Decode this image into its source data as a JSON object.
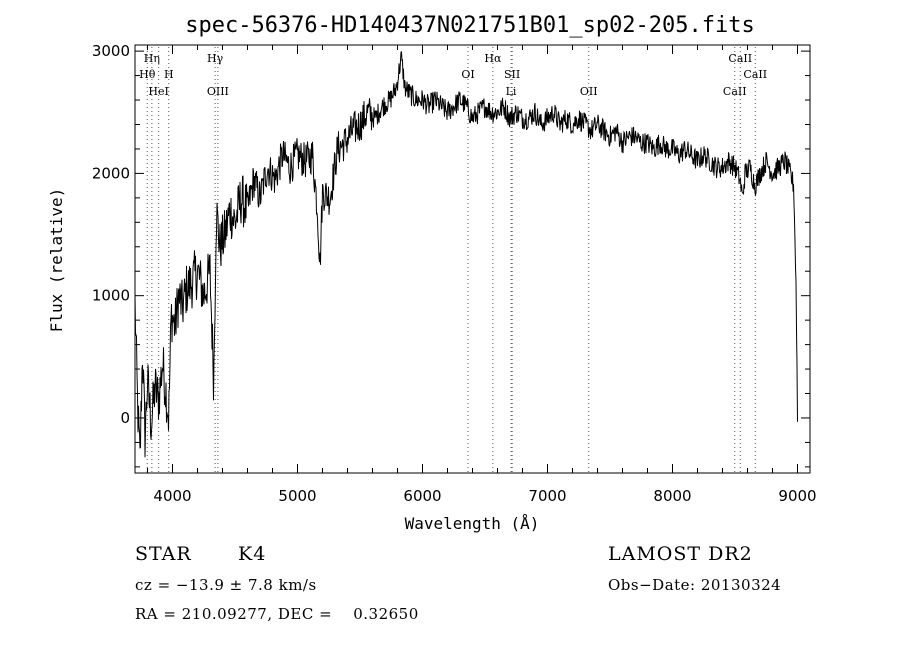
{
  "chart_data": {
    "type": "line",
    "title": "spec-56376-HD140437N021751B01_sp02-205.fits",
    "xlabel": "Wavelength (Å)",
    "ylabel": "Flux (relative)",
    "xlim": [
      3700,
      9100
    ],
    "ylim": [
      -450,
      3050
    ],
    "x_ticks": [
      4000,
      5000,
      6000,
      7000,
      8000,
      9000
    ],
    "y_ticks": [
      0,
      1000,
      2000,
      3000
    ],
    "grid": false,
    "series": [
      {
        "x": [
          3700,
          3720,
          3740,
          3760,
          3780,
          3800,
          3830,
          3860,
          3890,
          3920,
          3950,
          3970,
          3990,
          4020,
          4050,
          4080,
          4110,
          4150,
          4200,
          4250,
          4300,
          4330,
          4350,
          4380,
          4420,
          4460,
          4500,
          4550,
          4600,
          4650,
          4700,
          4760,
          4820,
          4880,
          4940,
          5000,
          5060,
          5120,
          5160,
          5180,
          5200,
          5260,
          5320,
          5380,
          5440,
          5500,
          5560,
          5620,
          5680,
          5740,
          5790,
          5830,
          5860,
          5900,
          5950,
          6000,
          6050,
          6100,
          6150,
          6200,
          6250,
          6300,
          6350,
          6400,
          6450,
          6500,
          6550,
          6600,
          6650,
          6700,
          6750,
          6800,
          6850,
          6900,
          6950,
          7000,
          7050,
          7100,
          7150,
          7200,
          7250,
          7300,
          7350,
          7400,
          7450,
          7500,
          7550,
          7600,
          7650,
          7700,
          7750,
          7800,
          7850,
          7900,
          7950,
          8000,
          8050,
          8100,
          8150,
          8200,
          8250,
          8300,
          8350,
          8400,
          8450,
          8500,
          8540,
          8560,
          8580,
          8620,
          8660,
          8700,
          8750,
          8800,
          8850,
          8900,
          8940,
          8970,
          8990,
          9000
        ],
        "y": [
          950,
          120,
          -350,
          550,
          -150,
          300,
          -50,
          250,
          150,
          450,
          200,
          0,
          850,
          750,
          1000,
          900,
          1050,
          1100,
          1200,
          1000,
          1200,
          300,
          1700,
          1400,
          1500,
          1700,
          1600,
          1800,
          1700,
          1950,
          1800,
          2050,
          1950,
          2150,
          2050,
          2150,
          2100,
          2150,
          1700,
          1250,
          1850,
          1800,
          2200,
          2250,
          2350,
          2400,
          2500,
          2450,
          2550,
          2600,
          2700,
          2950,
          2700,
          2650,
          2600,
          2600,
          2550,
          2600,
          2550,
          2500,
          2550,
          2600,
          2550,
          2450,
          2500,
          2550,
          2500,
          2500,
          2550,
          2450,
          2500,
          2450,
          2450,
          2500,
          2400,
          2450,
          2500,
          2400,
          2450,
          2400,
          2450,
          2400,
          2350,
          2400,
          2350,
          2300,
          2350,
          2250,
          2300,
          2300,
          2250,
          2250,
          2200,
          2250,
          2200,
          2200,
          2150,
          2200,
          2150,
          2100,
          2150,
          2100,
          2050,
          2050,
          2100,
          2050,
          1950,
          1800,
          2000,
          2050,
          1900,
          2000,
          2100,
          2000,
          2050,
          2100,
          2000,
          1900,
          1000,
          0
        ]
      }
    ],
    "line_markers": [
      {
        "label": "Hη",
        "wavelength": 3835,
        "row": 0
      },
      {
        "label": "Hθ",
        "wavelength": 3798,
        "row": 1
      },
      {
        "label": "H",
        "wavelength": 3970,
        "row": 1
      },
      {
        "label": "HeI",
        "wavelength": 3889,
        "row": 2
      },
      {
        "label": "Hγ",
        "wavelength": 4341,
        "row": 0
      },
      {
        "label": "OIII",
        "wavelength": 4363,
        "row": 2
      },
      {
        "label": "Hα",
        "wavelength": 6563,
        "row": 0
      },
      {
        "label": "OI",
        "wavelength": 6364,
        "row": 1
      },
      {
        "label": "SII",
        "wavelength": 6717,
        "row": 1
      },
      {
        "label": "Li",
        "wavelength": 6708,
        "row": 2
      },
      {
        "label": "OII",
        "wavelength": 7330,
        "row": 2
      },
      {
        "label": "CaII",
        "wavelength": 8542,
        "row": 0
      },
      {
        "label": "CaII",
        "wavelength": 8662,
        "row": 1
      },
      {
        "label": "CaII",
        "wavelength": 8498,
        "row": 2
      }
    ]
  },
  "info": {
    "class_label": "STAR",
    "subclass": "K4",
    "survey": "LAMOST DR2",
    "velocity": "cz = −13.9 ± 7.8 km/s",
    "obs_date": "Obs−Date: 20130324",
    "coords": "RA = 210.09277, DEC =    0.32650"
  }
}
